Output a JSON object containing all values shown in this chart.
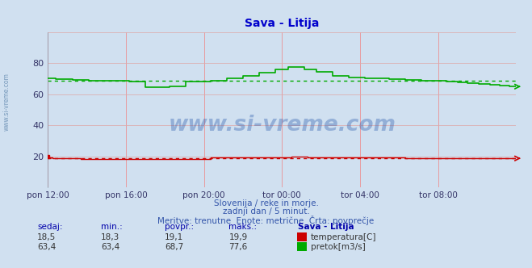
{
  "title": "Sava - Litija",
  "title_color": "#0000cc",
  "bg_color": "#d0e0f0",
  "plot_bg_color": "#d0e0f0",
  "grid_color_v": "#ee8888",
  "grid_color_h": "#ddaaaa",
  "ylim": [
    0,
    100
  ],
  "yticks": [
    20,
    40,
    60,
    80
  ],
  "xtick_labels": [
    "pon 12:00",
    "pon 16:00",
    "pon 20:00",
    "tor 00:00",
    "tor 04:00",
    "tor 08:00"
  ],
  "watermark_text": "www.si-vreme.com",
  "watermark_color": "#2255aa",
  "watermark_alpha": 0.35,
  "footer_lines": [
    "Slovenija / reke in morje.",
    "zadnji dan / 5 minut.",
    "Meritve: trenutne  Enote: metrične  Črta: povprečje"
  ],
  "footer_color": "#3355aa",
  "table_headers": [
    "sedaj:",
    "min.:",
    "povpr.:",
    "maks.:",
    "Sava - Litija"
  ],
  "table_row1": [
    "18,5",
    "18,3",
    "19,1",
    "19,9"
  ],
  "table_row2": [
    "63,4",
    "63,4",
    "68,7",
    "77,6"
  ],
  "legend_temp": "temperatura[C]",
  "legend_pretok": "pretok[m3/s]",
  "temp_color": "#cc0000",
  "pretok_color": "#00aa00",
  "avg_temp": 19.1,
  "avg_pretok": 68.7,
  "sidebar_text": "www.si-vreme.com",
  "sidebar_color": "#7799bb"
}
